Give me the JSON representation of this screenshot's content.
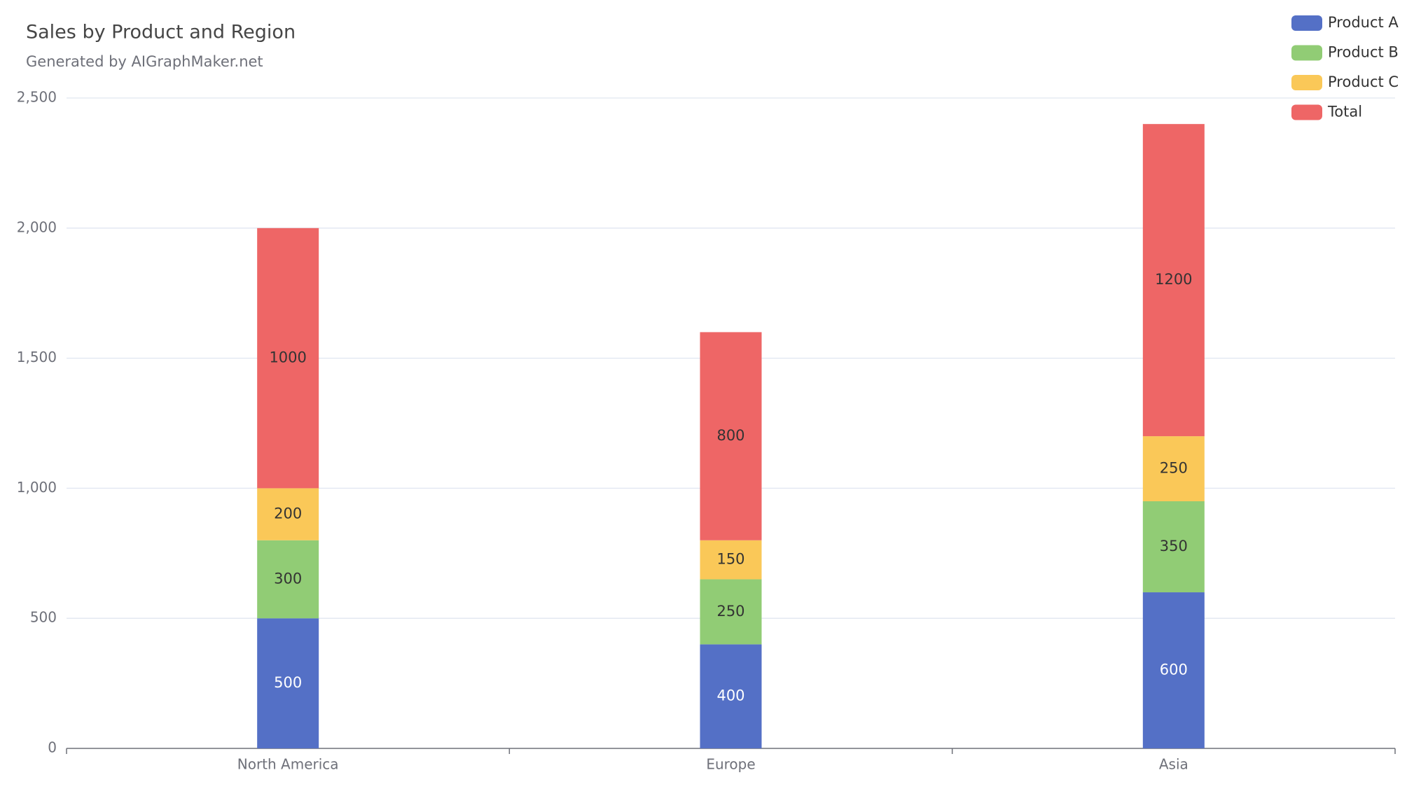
{
  "chart_data": {
    "type": "stacked-bar",
    "title": "Sales by Product and Region",
    "subtitle": "Generated by AIGraphMaker.net",
    "categories": [
      "North America",
      "Europe",
      "Asia"
    ],
    "series": [
      {
        "name": "Product A",
        "color": "#5470c6",
        "values": [
          500,
          400,
          600
        ]
      },
      {
        "name": "Product B",
        "color": "#91cc75",
        "values": [
          300,
          250,
          350
        ]
      },
      {
        "name": "Product C",
        "color": "#fac858",
        "values": [
          200,
          150,
          250
        ]
      },
      {
        "name": "Total",
        "color": "#ee6666",
        "values": [
          1000,
          800,
          1200
        ]
      }
    ],
    "ylim": [
      0,
      2500
    ],
    "yticks": [
      0,
      500,
      {
        "value": 1000,
        "label": "1,000"
      },
      {
        "value": 1500,
        "label": "1,500"
      },
      {
        "value": 2000,
        "label": "2,000"
      },
      {
        "value": 2500,
        "label": "2,500"
      }
    ],
    "grid": true,
    "legend": "top-right"
  }
}
